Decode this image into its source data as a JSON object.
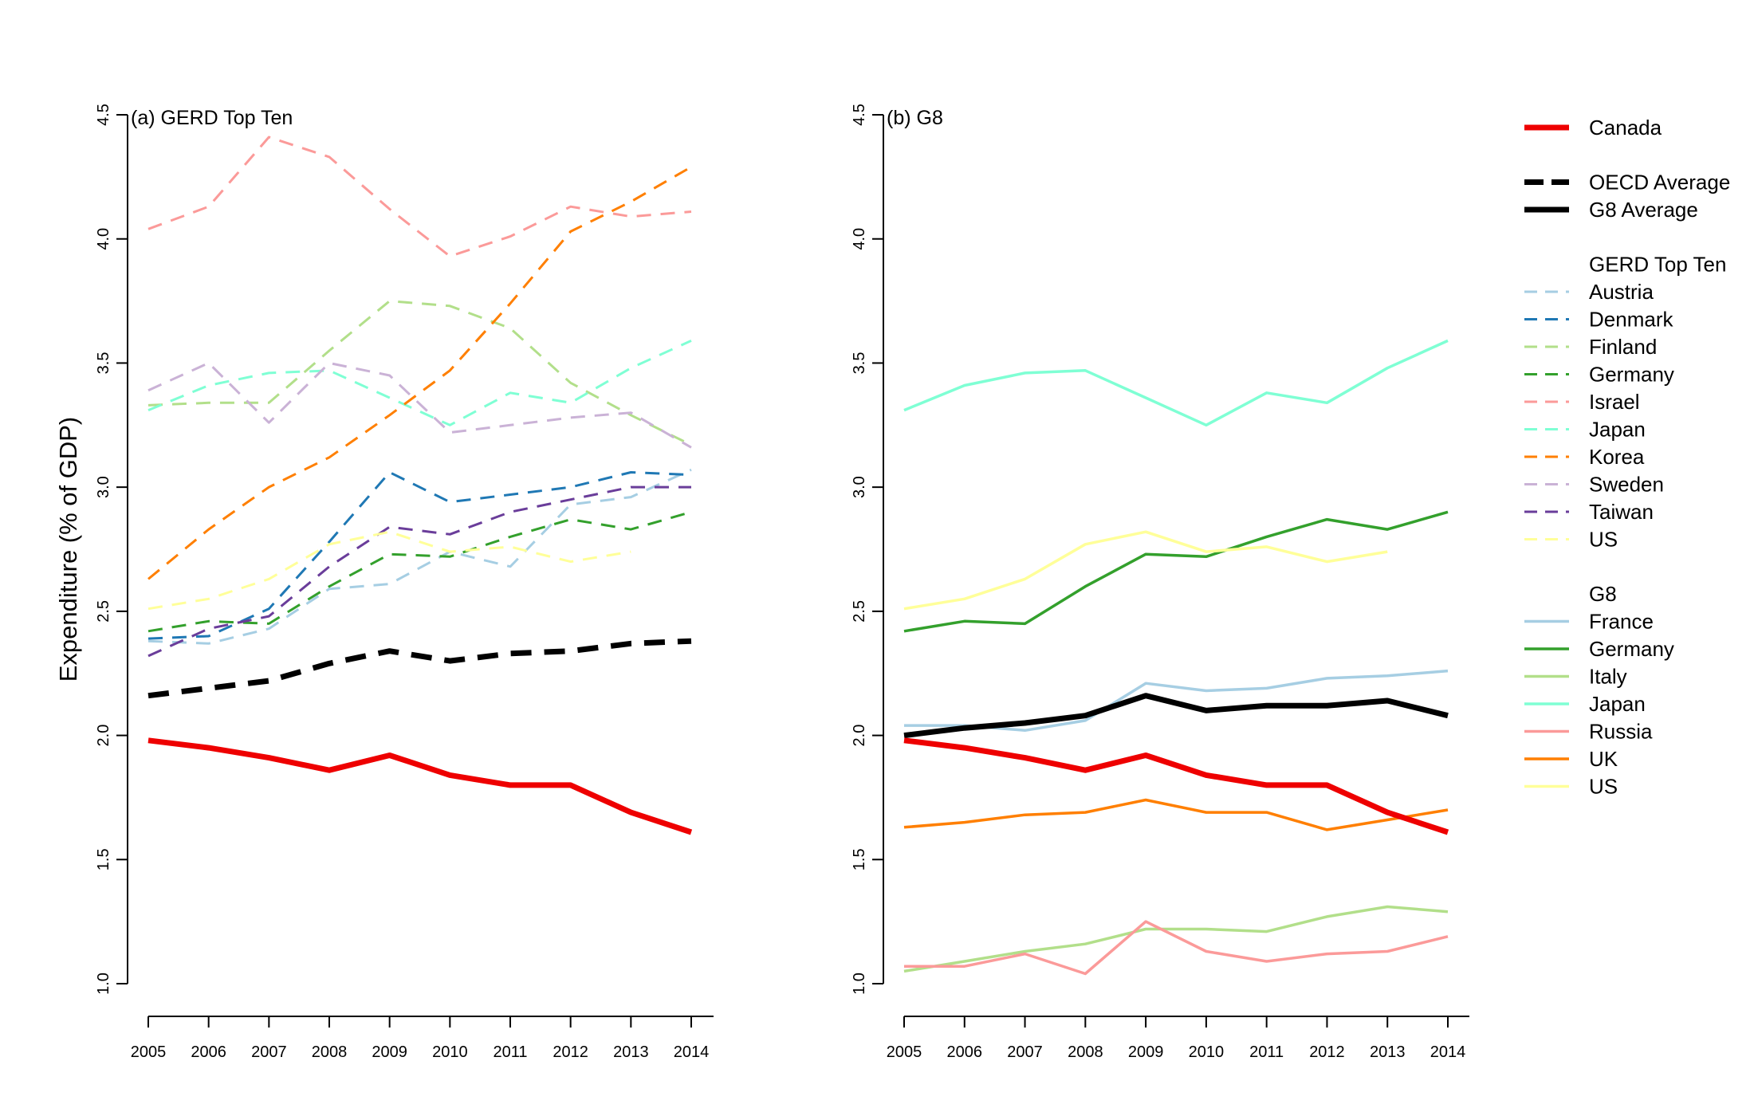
{
  "chart_data": [
    {
      "type": "line",
      "title": "(a) GERD Top Ten",
      "xlabel": "",
      "ylabel": "Expenditure (% of GDP)",
      "ylim": [
        1.0,
        4.5
      ],
      "yticks": [
        "1.0",
        "1.5",
        "2.0",
        "2.5",
        "3.0",
        "3.5",
        "4.0",
        "4.5"
      ],
      "x": [
        "2005",
        "2006",
        "2007",
        "2008",
        "2009",
        "2010",
        "2011",
        "2012",
        "2013",
        "2014"
      ],
      "grid": false,
      "series": [
        {
          "name": "Austria",
          "color": "#a6cee3",
          "style": "dashed",
          "width": 3,
          "values": [
            2.38,
            2.37,
            2.43,
            2.59,
            2.61,
            2.74,
            2.68,
            2.93,
            2.96,
            3.07
          ]
        },
        {
          "name": "Denmark",
          "color": "#1f78b4",
          "style": "dashed",
          "width": 3,
          "values": [
            2.39,
            2.4,
            2.51,
            2.78,
            3.06,
            2.94,
            2.97,
            3.0,
            3.06,
            3.05
          ]
        },
        {
          "name": "Finland",
          "color": "#b2df8a",
          "style": "dashed",
          "width": 3,
          "values": [
            3.33,
            3.34,
            3.34,
            3.55,
            3.75,
            3.73,
            3.64,
            3.42,
            3.29,
            3.17
          ]
        },
        {
          "name": "Germany",
          "color": "#33a02c",
          "style": "dashed",
          "width": 3,
          "values": [
            2.42,
            2.46,
            2.45,
            2.6,
            2.73,
            2.72,
            2.8,
            2.87,
            2.83,
            2.9
          ]
        },
        {
          "name": "Israel",
          "color": "#fb9a99",
          "style": "dashed",
          "width": 3,
          "values": [
            4.04,
            4.13,
            4.41,
            4.33,
            4.12,
            3.93,
            4.01,
            4.13,
            4.09,
            4.11
          ]
        },
        {
          "name": "Japan",
          "color": "#7fffd4",
          "style": "dashed",
          "width": 3,
          "values": [
            3.31,
            3.41,
            3.46,
            3.47,
            3.36,
            3.25,
            3.38,
            3.34,
            3.48,
            3.59
          ]
        },
        {
          "name": "Korea",
          "color": "#ff7f00",
          "style": "dashed",
          "width": 3,
          "values": [
            2.63,
            2.83,
            3.0,
            3.12,
            3.29,
            3.47,
            3.74,
            4.03,
            4.15,
            4.29
          ]
        },
        {
          "name": "Sweden",
          "color": "#cab2d6",
          "style": "dashed",
          "width": 3,
          "values": [
            3.39,
            3.5,
            3.26,
            3.5,
            3.45,
            3.22,
            3.25,
            3.28,
            3.3,
            3.16
          ]
        },
        {
          "name": "Taiwan",
          "color": "#6a3d9a",
          "style": "dashed",
          "width": 3,
          "values": [
            2.32,
            2.43,
            2.48,
            2.68,
            2.84,
            2.81,
            2.9,
            2.95,
            3.0,
            3.0
          ]
        },
        {
          "name": "US",
          "color": "#ffff99",
          "style": "dashed",
          "width": 3,
          "values": [
            2.51,
            2.55,
            2.63,
            2.77,
            2.82,
            2.74,
            2.76,
            2.7,
            2.74,
            null
          ]
        },
        {
          "name": "OECD Average",
          "color": "#000000",
          "style": "dashed-bold",
          "width": 7,
          "values": [
            2.16,
            2.19,
            2.22,
            2.29,
            2.34,
            2.3,
            2.33,
            2.34,
            2.37,
            2.38
          ]
        },
        {
          "name": "Canada",
          "color": "#ee0000",
          "style": "solid",
          "width": 7,
          "values": [
            1.98,
            1.95,
            1.91,
            1.86,
            1.92,
            1.84,
            1.8,
            1.8,
            1.69,
            1.61
          ]
        }
      ]
    },
    {
      "type": "line",
      "title": "(b) G8",
      "xlabel": "",
      "ylabel": "",
      "ylim": [
        1.0,
        4.5
      ],
      "yticks": [
        "1.0",
        "1.5",
        "2.0",
        "2.5",
        "3.0",
        "3.5",
        "4.0",
        "4.5"
      ],
      "x": [
        "2005",
        "2006",
        "2007",
        "2008",
        "2009",
        "2010",
        "2011",
        "2012",
        "2013",
        "2014"
      ],
      "grid": false,
      "series": [
        {
          "name": "France",
          "color": "#a6cee3",
          "style": "solid",
          "width": 3.5,
          "values": [
            2.04,
            2.04,
            2.02,
            2.06,
            2.21,
            2.18,
            2.19,
            2.23,
            2.24,
            2.26
          ]
        },
        {
          "name": "Germany",
          "color": "#33a02c",
          "style": "solid",
          "width": 3.5,
          "values": [
            2.42,
            2.46,
            2.45,
            2.6,
            2.73,
            2.72,
            2.8,
            2.87,
            2.83,
            2.9
          ]
        },
        {
          "name": "Italy",
          "color": "#b2df8a",
          "style": "solid",
          "width": 3.5,
          "values": [
            1.05,
            1.09,
            1.13,
            1.16,
            1.22,
            1.22,
            1.21,
            1.27,
            1.31,
            1.29
          ]
        },
        {
          "name": "Japan",
          "color": "#7fffd4",
          "style": "solid",
          "width": 3.5,
          "values": [
            3.31,
            3.41,
            3.46,
            3.47,
            3.36,
            3.25,
            3.38,
            3.34,
            3.48,
            3.59
          ]
        },
        {
          "name": "Russia",
          "color": "#fb9a99",
          "style": "solid",
          "width": 3.5,
          "values": [
            1.07,
            1.07,
            1.12,
            1.04,
            1.25,
            1.13,
            1.09,
            1.12,
            1.13,
            1.19
          ]
        },
        {
          "name": "UK",
          "color": "#ff7f00",
          "style": "solid",
          "width": 3.5,
          "values": [
            1.63,
            1.65,
            1.68,
            1.69,
            1.74,
            1.69,
            1.69,
            1.62,
            1.66,
            1.7
          ]
        },
        {
          "name": "US",
          "color": "#ffff99",
          "style": "solid",
          "width": 3.5,
          "values": [
            2.51,
            2.55,
            2.63,
            2.77,
            2.82,
            2.74,
            2.76,
            2.7,
            2.74,
            null
          ]
        },
        {
          "name": "G8 Average",
          "color": "#000000",
          "style": "solid",
          "width": 7,
          "values": [
            2.0,
            2.03,
            2.05,
            2.08,
            2.16,
            2.1,
            2.12,
            2.12,
            2.14,
            2.08
          ]
        },
        {
          "name": "Canada",
          "color": "#ee0000",
          "style": "solid",
          "width": 7,
          "values": [
            1.98,
            1.95,
            1.91,
            1.86,
            1.92,
            1.84,
            1.8,
            1.8,
            1.69,
            1.61
          ]
        }
      ]
    }
  ],
  "legend": {
    "placement": "right",
    "groups": [
      {
        "heading": "",
        "items": [
          {
            "label": "Canada",
            "color": "#ee0000",
            "style": "solid",
            "width": 7
          }
        ]
      },
      {
        "heading": "",
        "items": [
          {
            "label": "OECD Average",
            "color": "#000000",
            "style": "dashed-bold",
            "width": 7
          },
          {
            "label": "G8 Average",
            "color": "#000000",
            "style": "solid",
            "width": 7
          }
        ]
      },
      {
        "heading": "GERD Top Ten",
        "items": [
          {
            "label": "Austria",
            "color": "#a6cee3",
            "style": "dashed",
            "width": 3
          },
          {
            "label": "Denmark",
            "color": "#1f78b4",
            "style": "dashed",
            "width": 3
          },
          {
            "label": "Finland",
            "color": "#b2df8a",
            "style": "dashed",
            "width": 3
          },
          {
            "label": "Germany",
            "color": "#33a02c",
            "style": "dashed",
            "width": 3
          },
          {
            "label": "Israel",
            "color": "#fb9a99",
            "style": "dashed",
            "width": 3
          },
          {
            "label": "Japan",
            "color": "#7fffd4",
            "style": "dashed",
            "width": 3
          },
          {
            "label": "Korea",
            "color": "#ff7f00",
            "style": "dashed",
            "width": 3
          },
          {
            "label": "Sweden",
            "color": "#cab2d6",
            "style": "dashed",
            "width": 3
          },
          {
            "label": "Taiwan",
            "color": "#6a3d9a",
            "style": "dashed",
            "width": 3
          },
          {
            "label": "US",
            "color": "#ffff99",
            "style": "dashed",
            "width": 3
          }
        ]
      },
      {
        "heading": "G8",
        "items": [
          {
            "label": "France",
            "color": "#a6cee3",
            "style": "solid",
            "width": 3.5
          },
          {
            "label": "Germany",
            "color": "#33a02c",
            "style": "solid",
            "width": 3.5
          },
          {
            "label": "Italy",
            "color": "#b2df8a",
            "style": "solid",
            "width": 3.5
          },
          {
            "label": "Japan",
            "color": "#7fffd4",
            "style": "solid",
            "width": 3.5
          },
          {
            "label": "Russia",
            "color": "#fb9a99",
            "style": "solid",
            "width": 3.5
          },
          {
            "label": "UK",
            "color": "#ff7f00",
            "style": "solid",
            "width": 3.5
          },
          {
            "label": "US",
            "color": "#ffff99",
            "style": "solid",
            "width": 3.5
          }
        ]
      }
    ]
  }
}
